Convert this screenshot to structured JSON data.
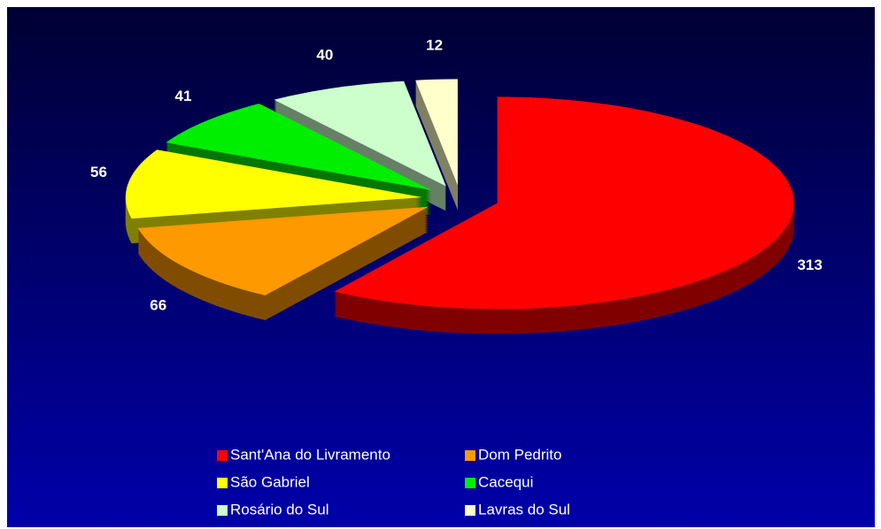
{
  "chart_data": {
    "type": "pie",
    "categories": [
      "Sant'Ana do Livramento",
      "Dom Pedrito",
      "São Gabriel",
      "Cacequi",
      "Rosário do Sul",
      "Lavras do Sul"
    ],
    "values": [
      313,
      66,
      56,
      41,
      40,
      12
    ],
    "colors": [
      "#ff0000",
      "#ff9900",
      "#ffff00",
      "#00ee00",
      "#ccffcc",
      "#ffffcc"
    ],
    "legend": "bottom"
  }
}
